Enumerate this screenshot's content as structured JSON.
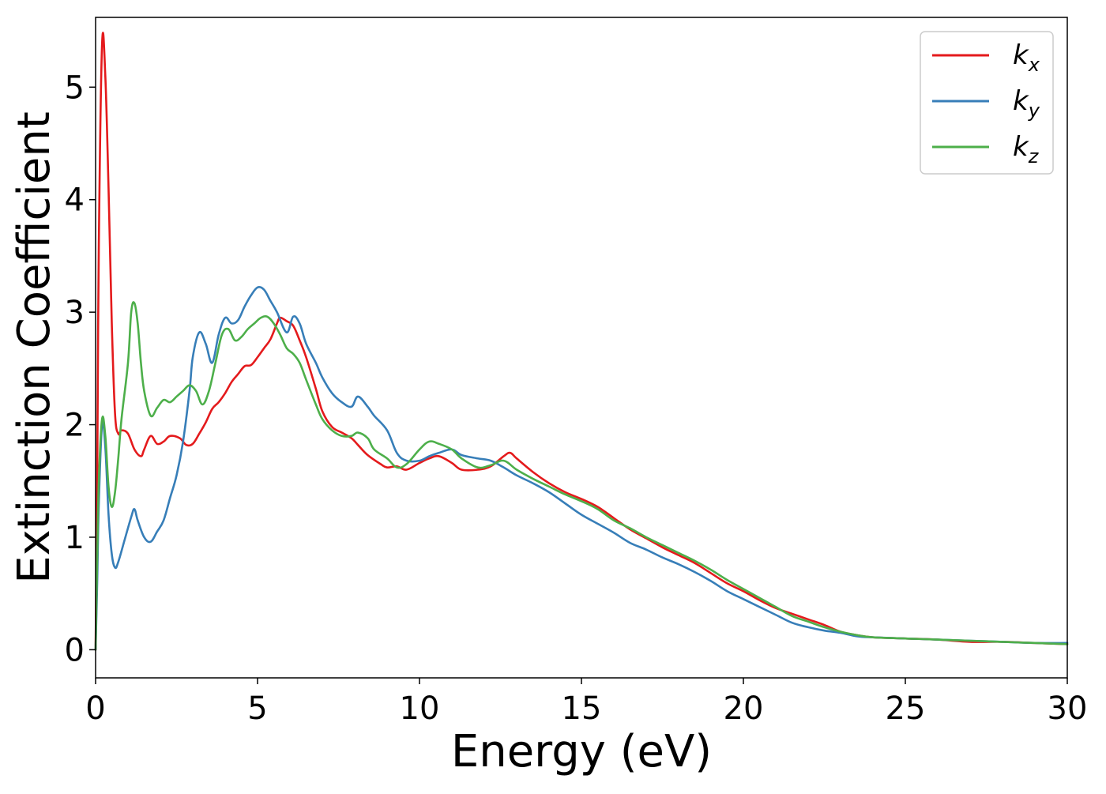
{
  "chart_data": {
    "type": "line",
    "title": "",
    "xlabel": "Energy (eV)",
    "ylabel": "Extinction Coefficient",
    "xlim": [
      0,
      30
    ],
    "ylim": [
      -0.25,
      5.62
    ],
    "xticks": [
      0,
      5,
      10,
      15,
      20,
      25,
      30
    ],
    "yticks": [
      0,
      1,
      2,
      3,
      4,
      5
    ],
    "grid": false,
    "legend_position": "top-right",
    "series": [
      {
        "name": "k_x",
        "legend_base": "k",
        "legend_sub": "x",
        "color": "#e41a1c",
        "x": [
          0,
          0.05,
          0.1,
          0.2,
          0.3,
          0.4,
          0.5,
          0.6,
          0.7,
          0.8,
          1.0,
          1.2,
          1.4,
          1.5,
          1.7,
          1.9,
          2.1,
          2.3,
          2.6,
          2.8,
          3.0,
          3.2,
          3.4,
          3.6,
          3.8,
          4.0,
          4.2,
          4.4,
          4.6,
          4.8,
          5.0,
          5.2,
          5.4,
          5.6,
          5.7,
          5.9,
          6.1,
          6.3,
          6.5,
          6.8,
          7.0,
          7.3,
          7.6,
          7.9,
          8.1,
          8.4,
          8.8,
          9.0,
          9.3,
          9.6,
          10.0,
          10.3,
          10.6,
          11.0,
          11.3,
          11.8,
          12.2,
          12.6,
          12.8,
          13.0,
          13.5,
          14.0,
          14.5,
          15.0,
          15.5,
          16.0,
          16.5,
          17.0,
          17.5,
          18.0,
          18.5,
          19.0,
          19.5,
          20.0,
          20.5,
          21.0,
          21.5,
          22.0,
          22.5,
          23.0,
          23.5,
          24.0,
          25.0,
          26.0,
          27.0,
          28.0,
          29.0,
          30.0
        ],
        "y": [
          0.0,
          1.5,
          3.6,
          5.38,
          5.1,
          4.1,
          2.9,
          2.1,
          1.92,
          1.95,
          1.92,
          1.78,
          1.72,
          1.78,
          1.9,
          1.83,
          1.85,
          1.9,
          1.88,
          1.82,
          1.83,
          1.92,
          2.02,
          2.14,
          2.2,
          2.28,
          2.38,
          2.45,
          2.52,
          2.53,
          2.6,
          2.68,
          2.76,
          2.9,
          2.95,
          2.92,
          2.88,
          2.75,
          2.6,
          2.32,
          2.12,
          1.98,
          1.93,
          1.88,
          1.82,
          1.73,
          1.65,
          1.62,
          1.63,
          1.6,
          1.66,
          1.7,
          1.72,
          1.66,
          1.6,
          1.6,
          1.63,
          1.72,
          1.75,
          1.7,
          1.58,
          1.48,
          1.4,
          1.34,
          1.27,
          1.17,
          1.07,
          0.99,
          0.91,
          0.84,
          0.77,
          0.68,
          0.59,
          0.52,
          0.44,
          0.37,
          0.32,
          0.27,
          0.22,
          0.16,
          0.13,
          0.11,
          0.1,
          0.09,
          0.07,
          0.07,
          0.06,
          0.05
        ]
      },
      {
        "name": "k_y",
        "legend_base": "k",
        "legend_sub": "y",
        "color": "#377eb8",
        "x": [
          0,
          0.05,
          0.1,
          0.2,
          0.3,
          0.4,
          0.5,
          0.6,
          0.7,
          0.9,
          1.1,
          1.2,
          1.3,
          1.5,
          1.7,
          1.9,
          2.1,
          2.3,
          2.5,
          2.7,
          2.9,
          3.0,
          3.2,
          3.4,
          3.6,
          3.8,
          4.0,
          4.2,
          4.4,
          4.6,
          4.8,
          5.0,
          5.2,
          5.4,
          5.6,
          5.9,
          6.1,
          6.3,
          6.5,
          6.8,
          7.0,
          7.3,
          7.6,
          7.9,
          8.1,
          8.4,
          8.6,
          9.0,
          9.3,
          9.6,
          10.0,
          10.3,
          10.6,
          11.0,
          11.3,
          11.8,
          12.2,
          12.6,
          13.0,
          13.5,
          14.0,
          14.5,
          15.0,
          15.5,
          16.0,
          16.5,
          17.0,
          17.5,
          18.0,
          18.5,
          19.0,
          19.5,
          20.0,
          20.5,
          21.0,
          21.5,
          22.0,
          22.5,
          23.0,
          23.5,
          24.0,
          25.0,
          26.0,
          27.0,
          28.0,
          29.0,
          30.0
        ],
        "y": [
          0.0,
          0.6,
          1.3,
          2.0,
          1.8,
          1.2,
          0.85,
          0.73,
          0.78,
          0.98,
          1.18,
          1.25,
          1.15,
          1.0,
          0.96,
          1.05,
          1.15,
          1.35,
          1.55,
          1.85,
          2.3,
          2.6,
          2.82,
          2.72,
          2.55,
          2.8,
          2.95,
          2.9,
          2.93,
          3.05,
          3.15,
          3.22,
          3.2,
          3.1,
          3.0,
          2.82,
          2.96,
          2.9,
          2.72,
          2.55,
          2.42,
          2.28,
          2.2,
          2.16,
          2.25,
          2.16,
          2.08,
          1.95,
          1.75,
          1.68,
          1.68,
          1.72,
          1.75,
          1.78,
          1.73,
          1.7,
          1.68,
          1.62,
          1.55,
          1.48,
          1.4,
          1.3,
          1.2,
          1.12,
          1.04,
          0.95,
          0.89,
          0.82,
          0.76,
          0.69,
          0.61,
          0.52,
          0.45,
          0.38,
          0.31,
          0.24,
          0.2,
          0.17,
          0.15,
          0.12,
          0.11,
          0.1,
          0.09,
          0.08,
          0.07,
          0.06,
          0.06
        ]
      },
      {
        "name": "k_z",
        "legend_base": "k",
        "legend_sub": "z",
        "color": "#4daf4a",
        "x": [
          0,
          0.05,
          0.1,
          0.2,
          0.3,
          0.4,
          0.5,
          0.6,
          0.7,
          0.8,
          1.0,
          1.1,
          1.2,
          1.3,
          1.4,
          1.5,
          1.7,
          1.9,
          2.1,
          2.3,
          2.5,
          2.7,
          2.9,
          3.1,
          3.3,
          3.5,
          3.7,
          3.9,
          4.1,
          4.3,
          4.5,
          4.7,
          4.9,
          5.1,
          5.3,
          5.5,
          5.7,
          5.9,
          6.1,
          6.3,
          6.5,
          6.8,
          7.0,
          7.3,
          7.6,
          7.9,
          8.1,
          8.4,
          8.6,
          9.0,
          9.3,
          9.6,
          10.0,
          10.3,
          10.6,
          11.0,
          11.3,
          11.8,
          12.2,
          12.6,
          13.0,
          13.5,
          14.0,
          14.5,
          15.0,
          15.5,
          16.0,
          16.5,
          17.0,
          17.5,
          18.0,
          18.5,
          19.0,
          19.5,
          20.0,
          20.5,
          21.0,
          21.5,
          22.0,
          22.5,
          23.0,
          23.5,
          24.0,
          25.0,
          26.0,
          27.0,
          28.0,
          29.0,
          30.0
        ],
        "y": [
          0.0,
          0.8,
          1.5,
          2.05,
          1.9,
          1.45,
          1.27,
          1.4,
          1.7,
          2.05,
          2.55,
          3.0,
          3.08,
          2.9,
          2.55,
          2.3,
          2.08,
          2.15,
          2.22,
          2.2,
          2.25,
          2.3,
          2.35,
          2.3,
          2.18,
          2.3,
          2.55,
          2.8,
          2.85,
          2.75,
          2.78,
          2.85,
          2.9,
          2.95,
          2.96,
          2.9,
          2.8,
          2.68,
          2.63,
          2.55,
          2.4,
          2.18,
          2.05,
          1.95,
          1.9,
          1.9,
          1.93,
          1.88,
          1.78,
          1.7,
          1.62,
          1.65,
          1.78,
          1.85,
          1.83,
          1.78,
          1.7,
          1.62,
          1.64,
          1.68,
          1.6,
          1.52,
          1.45,
          1.38,
          1.32,
          1.25,
          1.15,
          1.08,
          1.0,
          0.93,
          0.86,
          0.79,
          0.71,
          0.62,
          0.54,
          0.46,
          0.38,
          0.3,
          0.25,
          0.2,
          0.16,
          0.13,
          0.11,
          0.1,
          0.09,
          0.08,
          0.07,
          0.06,
          0.05
        ]
      }
    ]
  }
}
